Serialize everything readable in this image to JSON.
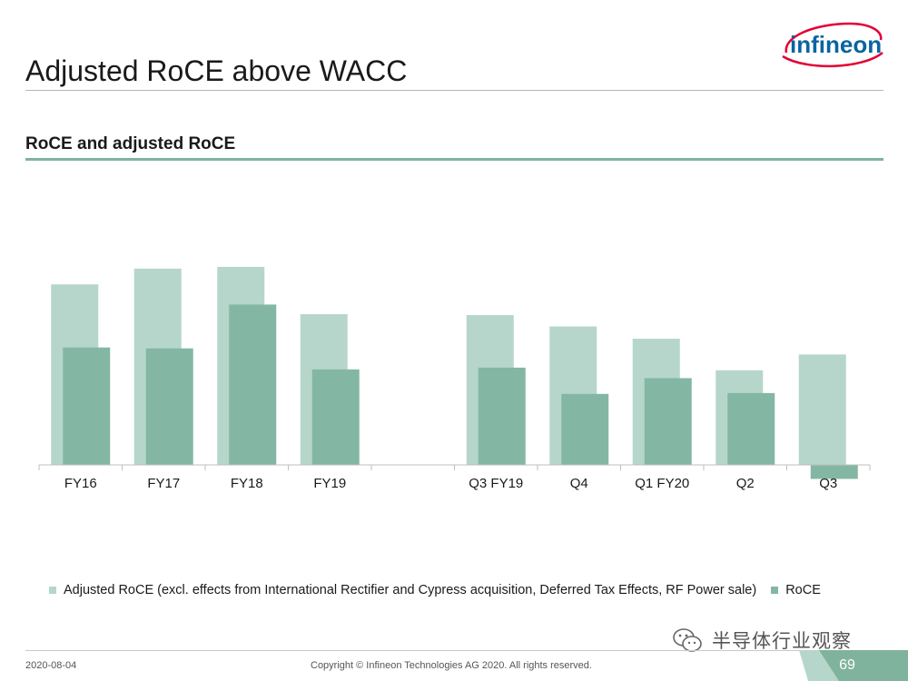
{
  "slide": {
    "title": "Adjusted RoCE above WACC",
    "logo_text": "infineon"
  },
  "chart_data": {
    "type": "bar",
    "title": "RoCE and adjusted RoCE",
    "categories": [
      "FY16",
      "FY17",
      "FY18",
      "FY19",
      "",
      "Q3 FY19",
      "Q4",
      "Q1 FY20",
      "Q2",
      "Q3"
    ],
    "series": [
      {
        "name": "Adjusted RoCE (excl. effects from International Rectifier and Cypress acquisition, Deferred Tax Effects, RF Power sale)",
        "color": "#b6d6cb",
        "values": [
          20.6,
          22.4,
          22.6,
          17.2,
          null,
          17.1,
          15.8,
          14.4,
          10.8,
          12.6
        ]
      },
      {
        "name": "RoCE",
        "color": "#83b7a4",
        "values": [
          13.4,
          13.3,
          18.3,
          10.9,
          null,
          11.1,
          8.1,
          9.9,
          8.2,
          -1.6
        ]
      }
    ],
    "ylim": [
      -2,
      26
    ],
    "xlabel": "",
    "ylabel": "",
    "grid": false,
    "legend_position": "bottom"
  },
  "watermark": {
    "text": "半导体行业观察"
  },
  "footer": {
    "date": "2020-08-04",
    "copyright": "Copyright © Infineon Technologies AG 2020. All rights reserved.",
    "page_number": "69"
  },
  "colors": {
    "accent_green": "#7fb39d",
    "logo_red": "#e30034",
    "logo_blue": "#0a64a0"
  }
}
